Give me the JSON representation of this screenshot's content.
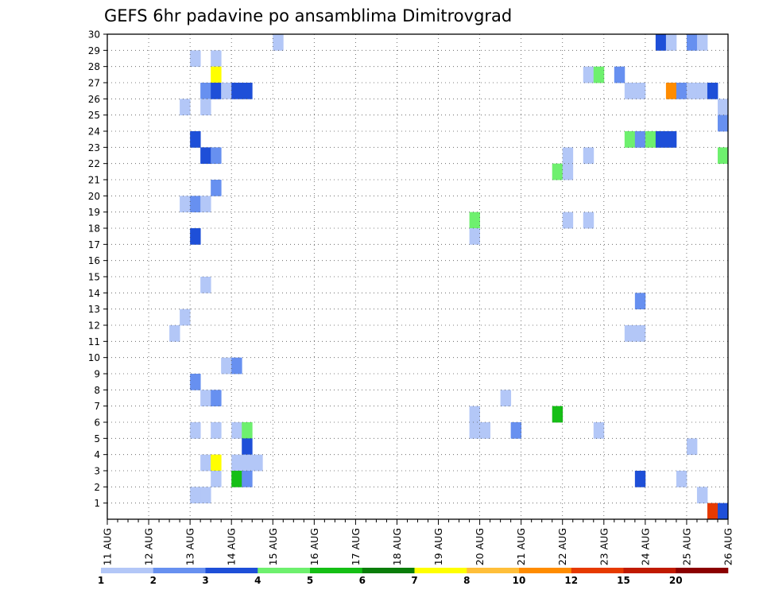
{
  "chart_data": {
    "type": "heatmap",
    "title": "GEFS 6hr padavine po ansamblima Dimitrovgrad",
    "xlabel": "",
    "ylabel": "",
    "x_ticks": [
      "11 AUG",
      "12 AUG",
      "13 AUG",
      "14 AUG",
      "15 AUG",
      "16 AUG",
      "17 AUG",
      "18 AUG",
      "19 AUG",
      "20 AUG",
      "21 AUG",
      "22 AUG",
      "23 AUG",
      "24 AUG",
      "25 AUG",
      "26 AUG"
    ],
    "x_start": "11 AUG 00Z",
    "x_step_hours": 6,
    "x_steps": 60,
    "y_ticks": [
      "1",
      "2",
      "3",
      "4",
      "5",
      "6",
      "7",
      "8",
      "9",
      "10",
      "11",
      "12",
      "13",
      "14",
      "15",
      "16",
      "17",
      "18",
      "19",
      "20",
      "21",
      "22",
      "23",
      "24",
      "25",
      "26",
      "27",
      "28",
      "29",
      "30"
    ],
    "ylim": [
      0,
      30
    ],
    "grid": true,
    "legend_position": "bottom",
    "levels": [
      "1",
      "2",
      "3",
      "4",
      "5",
      "6",
      "7",
      "8",
      "10",
      "12",
      "15",
      "20"
    ],
    "level_colors": [
      "#b3c7f7",
      "#6790f0",
      "#1e4fd8",
      "#6ef06e",
      "#15bf15",
      "#0a7d0a",
      "#ffff00",
      "#ffbf3a",
      "#ff8c00",
      "#e63a00",
      "#c01a00",
      "#8b0000"
    ],
    "cells": [
      {
        "member": 30,
        "step": 16,
        "class": 0
      },
      {
        "member": 30,
        "step": 53,
        "class": 2
      },
      {
        "member": 30,
        "step": 54,
        "class": 0
      },
      {
        "member": 30,
        "step": 56,
        "class": 1
      },
      {
        "member": 30,
        "step": 57,
        "class": 0
      },
      {
        "member": 29,
        "step": 8,
        "class": 0
      },
      {
        "member": 29,
        "step": 10,
        "class": 0
      },
      {
        "member": 28,
        "step": 10,
        "class": 6
      },
      {
        "member": 28,
        "step": 46,
        "class": 0
      },
      {
        "member": 28,
        "step": 47,
        "class": 3
      },
      {
        "member": 28,
        "step": 49,
        "class": 1
      },
      {
        "member": 27,
        "step": 9,
        "class": 1
      },
      {
        "member": 27,
        "step": 10,
        "class": 2
      },
      {
        "member": 27,
        "step": 11,
        "class": 0
      },
      {
        "member": 27,
        "step": 12,
        "class": 2
      },
      {
        "member": 27,
        "step": 13,
        "class": 2
      },
      {
        "member": 27,
        "step": 50,
        "class": 0
      },
      {
        "member": 27,
        "step": 51,
        "class": 0
      },
      {
        "member": 27,
        "step": 54,
        "class": 8
      },
      {
        "member": 27,
        "step": 55,
        "class": 1
      },
      {
        "member": 27,
        "step": 56,
        "class": 0
      },
      {
        "member": 27,
        "step": 57,
        "class": 0
      },
      {
        "member": 27,
        "step": 58,
        "class": 2
      },
      {
        "member": 26,
        "step": 7,
        "class": 0
      },
      {
        "member": 26,
        "step": 9,
        "class": 0
      },
      {
        "member": 26,
        "step": 59,
        "class": 0
      },
      {
        "member": 25,
        "step": 59,
        "class": 1
      },
      {
        "member": 24,
        "step": 8,
        "class": 2
      },
      {
        "member": 24,
        "step": 50,
        "class": 3
      },
      {
        "member": 24,
        "step": 51,
        "class": 1
      },
      {
        "member": 24,
        "step": 52,
        "class": 3
      },
      {
        "member": 24,
        "step": 53,
        "class": 2
      },
      {
        "member": 24,
        "step": 54,
        "class": 2
      },
      {
        "member": 23,
        "step": 9,
        "class": 2
      },
      {
        "member": 23,
        "step": 10,
        "class": 1
      },
      {
        "member": 23,
        "step": 44,
        "class": 0
      },
      {
        "member": 23,
        "step": 46,
        "class": 0
      },
      {
        "member": 23,
        "step": 59,
        "class": 3
      },
      {
        "member": 22,
        "step": 43,
        "class": 3
      },
      {
        "member": 22,
        "step": 44,
        "class": 0
      },
      {
        "member": 21,
        "step": 10,
        "class": 1
      },
      {
        "member": 20,
        "step": 7,
        "class": 0
      },
      {
        "member": 20,
        "step": 8,
        "class": 1
      },
      {
        "member": 20,
        "step": 9,
        "class": 0
      },
      {
        "member": 19,
        "step": 35,
        "class": 3
      },
      {
        "member": 19,
        "step": 44,
        "class": 0
      },
      {
        "member": 19,
        "step": 46,
        "class": 0
      },
      {
        "member": 18,
        "step": 8,
        "class": 2
      },
      {
        "member": 18,
        "step": 35,
        "class": 0
      },
      {
        "member": 15,
        "step": 9,
        "class": 0
      },
      {
        "member": 14,
        "step": 51,
        "class": 1
      },
      {
        "member": 13,
        "step": 7,
        "class": 0
      },
      {
        "member": 12,
        "step": 6,
        "class": 0
      },
      {
        "member": 12,
        "step": 50,
        "class": 0
      },
      {
        "member": 12,
        "step": 51,
        "class": 0
      },
      {
        "member": 10,
        "step": 11,
        "class": 0
      },
      {
        "member": 10,
        "step": 12,
        "class": 1
      },
      {
        "member": 9,
        "step": 8,
        "class": 1
      },
      {
        "member": 8,
        "step": 9,
        "class": 0
      },
      {
        "member": 8,
        "step": 10,
        "class": 1
      },
      {
        "member": 8,
        "step": 38,
        "class": 0
      },
      {
        "member": 7,
        "step": 35,
        "class": 0
      },
      {
        "member": 7,
        "step": 43,
        "class": 4
      },
      {
        "member": 6,
        "step": 8,
        "class": 0
      },
      {
        "member": 6,
        "step": 10,
        "class": 0
      },
      {
        "member": 6,
        "step": 12,
        "class": 0
      },
      {
        "member": 6,
        "step": 13,
        "class": 3
      },
      {
        "member": 6,
        "step": 35,
        "class": 0
      },
      {
        "member": 6,
        "step": 36,
        "class": 0
      },
      {
        "member": 6,
        "step": 39,
        "class": 1
      },
      {
        "member": 6,
        "step": 47,
        "class": 0
      },
      {
        "member": 5,
        "step": 13,
        "class": 2
      },
      {
        "member": 5,
        "step": 56,
        "class": 0
      },
      {
        "member": 4,
        "step": 9,
        "class": 0
      },
      {
        "member": 4,
        "step": 10,
        "class": 6
      },
      {
        "member": 4,
        "step": 12,
        "class": 0
      },
      {
        "member": 4,
        "step": 13,
        "class": 0
      },
      {
        "member": 4,
        "step": 14,
        "class": 0
      },
      {
        "member": 3,
        "step": 10,
        "class": 0
      },
      {
        "member": 3,
        "step": 12,
        "class": 4
      },
      {
        "member": 3,
        "step": 13,
        "class": 1
      },
      {
        "member": 3,
        "step": 51,
        "class": 2
      },
      {
        "member": 3,
        "step": 55,
        "class": 0
      },
      {
        "member": 2,
        "step": 8,
        "class": 0
      },
      {
        "member": 2,
        "step": 9,
        "class": 0
      },
      {
        "member": 2,
        "step": 57,
        "class": 0
      },
      {
        "member": 1,
        "step": 58,
        "class": 9
      },
      {
        "member": 1,
        "step": 59,
        "class": 2
      }
    ]
  }
}
